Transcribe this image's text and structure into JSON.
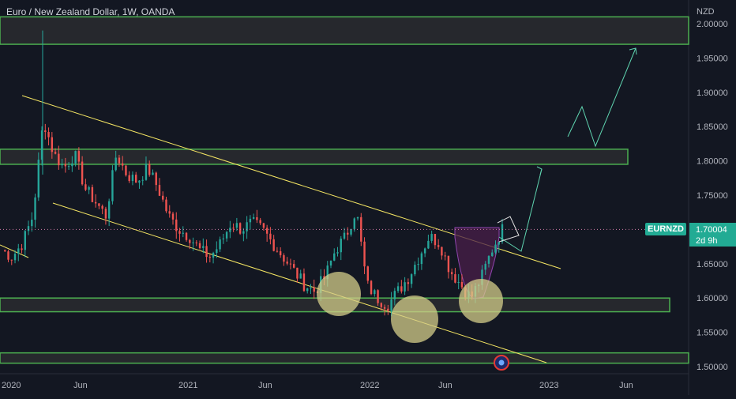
{
  "header": {
    "title": "Euro / New Zealand Dollar, 1W, OANDA"
  },
  "price_axis": {
    "currency": "NZD",
    "ticks": [
      "2.00000",
      "1.95000",
      "1.90000",
      "1.85000",
      "1.80000",
      "1.75000",
      "1.70000",
      "1.65000",
      "1.60000",
      "1.55000",
      "1.50000"
    ]
  },
  "time_axis": {
    "ticks": [
      "2020",
      "Jun",
      "2021",
      "Jun",
      "2022",
      "Jun",
      "2023",
      "Jun"
    ]
  },
  "last_price": {
    "symbol": "EURNZD",
    "value": "1.70004",
    "countdown": "2d 9h"
  },
  "colors": {
    "background": "#131722",
    "up_candle": "#26a69a",
    "down_candle": "#ef5350",
    "zone_border": "#4caf50",
    "trendline": "#f5e663",
    "projection": "#5fd4b0",
    "circle_fill": "#d4cd8a",
    "cup_fill": "#4a1f4a"
  },
  "chart_data": {
    "type": "candlestick",
    "title": "Euro / New Zealand Dollar, 1W, OANDA",
    "ylabel": "NZD",
    "ylim": [
      1.49,
      2.02
    ],
    "x_ticks": [
      "2020",
      "Jun",
      "2021",
      "Jun",
      "2022",
      "Jun",
      "2023",
      "Jun"
    ],
    "price_path": [
      1.67,
      1.66,
      1.68,
      1.72,
      1.86,
      1.81,
      1.79,
      1.81,
      1.76,
      1.74,
      1.72,
      1.81,
      1.78,
      1.77,
      1.79,
      1.76,
      1.72,
      1.7,
      1.69,
      1.67,
      1.66,
      1.68,
      1.71,
      1.7,
      1.71,
      1.7,
      1.68,
      1.66,
      1.64,
      1.62,
      1.61,
      1.63,
      1.67,
      1.69,
      1.73,
      1.62,
      1.6,
      1.59,
      1.61,
      1.63,
      1.66,
      1.69,
      1.68,
      1.64,
      1.62,
      1.6,
      1.63,
      1.67,
      1.7
    ],
    "spike_high": 1.99,
    "last_price": 1.70004,
    "supply_zone": [
      1.97,
      2.01
    ],
    "resistance_zone": [
      1.795,
      1.817
    ],
    "support_zone": [
      1.58,
      1.6
    ],
    "base_zone": [
      1.505,
      1.52
    ],
    "upper_channel_line": "descending",
    "lower_channel_line": "descending",
    "projection_targets": [
      1.79,
      1.96
    ]
  }
}
